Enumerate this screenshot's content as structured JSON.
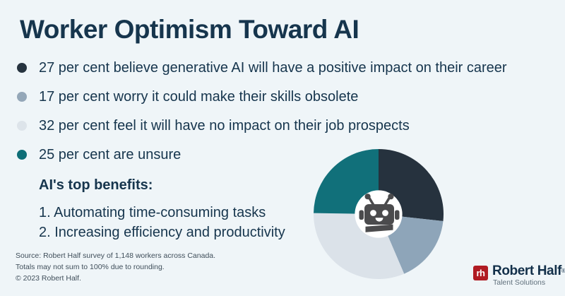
{
  "page": {
    "background_color": "#eff5f8",
    "text_color": "#16354d"
  },
  "header": {
    "title": "Worker Optimism Toward AI"
  },
  "stats": [
    {
      "label": "27 per cent believe generative AI will have a positive impact on their career",
      "color": "#26333f"
    },
    {
      "label": "17 per cent worry it could make their skills obsolete",
      "color": "#94a7b8"
    },
    {
      "label": "32 per cent feel it will have no impact on their job prospects",
      "color": "#dde4ea"
    },
    {
      "label": "25 per cent are unsure",
      "color": "#0e6e77"
    }
  ],
  "benefits": {
    "heading": "AI's top benefits:",
    "items": [
      "1. Automating time-consuming tasks",
      "2. Increasing efficiency and productivity"
    ]
  },
  "footnotes": [
    "Source: Robert Half survey of 1,148 workers across Canada.",
    "Totals may not sum to 100% due to rounding.",
    "© 2023 Robert Half."
  ],
  "logo": {
    "mark": "rh",
    "name": "Robert Half",
    "registered": "®",
    "tagline": "Talent Solutions",
    "mark_color": "#b01b23",
    "name_color": "#13304a"
  },
  "chart_data": {
    "type": "pie",
    "title": "Worker Optimism Toward AI",
    "categories": [
      "Believe generative AI will have a positive impact on their career",
      "Worry it could make their skills obsolete",
      "Feel it will have no impact on their job prospects",
      "Are unsure"
    ],
    "values": [
      27,
      17,
      32,
      25
    ],
    "unit": "per cent",
    "colors": [
      "#26323e",
      "#8ea5b9",
      "#dbe2e9",
      "#11707a"
    ],
    "start": "top",
    "direction": "clockwise",
    "legend_position": "none",
    "donut_hole_ratio": 0.365,
    "donut_hole_color": "#ffffff",
    "center_icon": "robot-icon",
    "center_icon_color": "#4b4b4d"
  }
}
